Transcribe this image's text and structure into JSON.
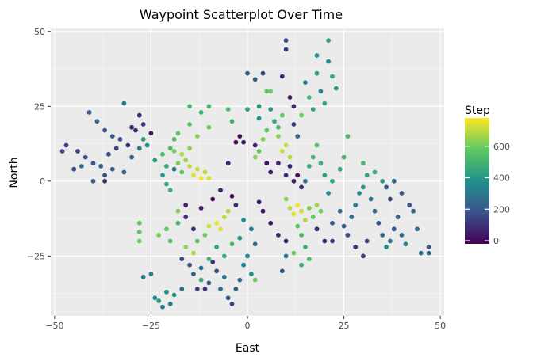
{
  "chart_data": {
    "type": "scatter",
    "title": "Waypoint Scatterplot Over Time",
    "xlabel": "East",
    "ylabel": "North",
    "xlim": [
      -51,
      51
    ],
    "ylim": [
      -45,
      51
    ],
    "x_ticks": [
      -50,
      -25,
      0,
      25,
      50
    ],
    "y_ticks": [
      -25,
      0,
      25,
      50
    ],
    "x_tick_labels": [
      "−50",
      "−25",
      "0",
      "25",
      "50"
    ],
    "y_tick_labels": [
      "−25",
      "0",
      "25",
      "50"
    ],
    "grid": true,
    "colormap": "viridis",
    "colormap_stops": [
      "#440154",
      "#3b528b",
      "#21918c",
      "#5ec962",
      "#fde725"
    ],
    "color_range": [
      -20,
      780
    ],
    "panel_background": "#ebebeb",
    "legend": {
      "title": "Step",
      "placement": "right",
      "ticks": [
        0,
        200,
        400,
        600
      ],
      "tick_labels": [
        "0",
        "200",
        "400",
        "600"
      ]
    },
    "points": [
      {
        "x": -48,
        "y": 10,
        "step": 160
      },
      {
        "x": -47,
        "y": 12,
        "step": 120
      },
      {
        "x": -44,
        "y": 10,
        "step": 140
      },
      {
        "x": -42,
        "y": 8,
        "step": 180
      },
      {
        "x": -40,
        "y": 6,
        "step": 200
      },
      {
        "x": -38,
        "y": 5,
        "step": 220
      },
      {
        "x": -36,
        "y": 9,
        "step": 160
      },
      {
        "x": -34,
        "y": 11,
        "step": 140
      },
      {
        "x": -33,
        "y": 14,
        "step": 180
      },
      {
        "x": -31,
        "y": 12,
        "step": 100
      },
      {
        "x": -30,
        "y": 8,
        "step": 240
      },
      {
        "x": -28,
        "y": 11,
        "step": 320
      },
      {
        "x": -27,
        "y": 14,
        "step": 400
      },
      {
        "x": -26,
        "y": 12,
        "step": 360
      },
      {
        "x": -41,
        "y": 23,
        "step": 200
      },
      {
        "x": -39,
        "y": 20,
        "step": 240
      },
      {
        "x": -37,
        "y": 17,
        "step": 180
      },
      {
        "x": -35,
        "y": 15,
        "step": 220
      },
      {
        "x": -32,
        "y": 26,
        "step": 300
      },
      {
        "x": -30,
        "y": 18,
        "step": 60
      },
      {
        "x": -28,
        "y": 22,
        "step": 80
      },
      {
        "x": -27,
        "y": 19,
        "step": 120
      },
      {
        "x": -25,
        "y": 16,
        "step": 40
      },
      {
        "x": -29,
        "y": 17,
        "step": 90
      },
      {
        "x": -40,
        "y": 0,
        "step": 200
      },
      {
        "x": -37,
        "y": 2,
        "step": 160
      },
      {
        "x": -35,
        "y": 4,
        "step": 240
      },
      {
        "x": -32,
        "y": 3,
        "step": 220
      },
      {
        "x": -45,
        "y": 4,
        "step": 180
      },
      {
        "x": -43,
        "y": 5,
        "step": 260
      },
      {
        "x": -37,
        "y": 0,
        "step": 100
      },
      {
        "x": -24,
        "y": 7,
        "step": 420
      },
      {
        "x": -22,
        "y": 9,
        "step": 520
      },
      {
        "x": -21,
        "y": 5,
        "step": 460
      },
      {
        "x": -20,
        "y": 11,
        "step": 540
      },
      {
        "x": -19,
        "y": 4,
        "step": 300
      },
      {
        "x": -18,
        "y": 6,
        "step": 620
      },
      {
        "x": -17,
        "y": 3,
        "step": 560
      },
      {
        "x": -16,
        "y": 7,
        "step": 660
      },
      {
        "x": -15,
        "y": 5,
        "step": 700
      },
      {
        "x": -14,
        "y": 2,
        "step": 740
      },
      {
        "x": -13,
        "y": 4,
        "step": 720
      },
      {
        "x": -12,
        "y": 1,
        "step": 760
      },
      {
        "x": -11,
        "y": 3,
        "step": 700
      },
      {
        "x": -10,
        "y": 1,
        "step": 740
      },
      {
        "x": -22,
        "y": 2,
        "step": 400
      },
      {
        "x": -21,
        "y": -1,
        "step": 460
      },
      {
        "x": -20,
        "y": -3,
        "step": 500
      },
      {
        "x": -19,
        "y": 10,
        "step": 600
      },
      {
        "x": -17,
        "y": 9,
        "step": 680
      },
      {
        "x": -15,
        "y": 11,
        "step": 640
      },
      {
        "x": -15,
        "y": 19,
        "step": 560
      },
      {
        "x": -15,
        "y": 25,
        "step": 520
      },
      {
        "x": -12,
        "y": 23,
        "step": 480
      },
      {
        "x": -10,
        "y": 25,
        "step": 520
      },
      {
        "x": -10,
        "y": 18,
        "step": 600
      },
      {
        "x": -13,
        "y": 15,
        "step": 640
      },
      {
        "x": -18,
        "y": 16,
        "step": 580
      },
      {
        "x": -19,
        "y": 14,
        "step": 540
      },
      {
        "x": -28,
        "y": -14,
        "step": 580
      },
      {
        "x": -28,
        "y": -17,
        "step": 560
      },
      {
        "x": -28,
        "y": -20,
        "step": 600
      },
      {
        "x": -23,
        "y": -18,
        "step": 620
      },
      {
        "x": -21,
        "y": -16,
        "step": 580
      },
      {
        "x": -20,
        "y": -20,
        "step": 540
      },
      {
        "x": -18,
        "y": -14,
        "step": 500
      },
      {
        "x": -16,
        "y": -22,
        "step": 640
      },
      {
        "x": -14,
        "y": -24,
        "step": 680
      },
      {
        "x": -13,
        "y": -20,
        "step": 560
      },
      {
        "x": -11,
        "y": -18,
        "step": 600
      },
      {
        "x": -10,
        "y": -15,
        "step": 720
      },
      {
        "x": -8,
        "y": -14,
        "step": 760
      },
      {
        "x": -7,
        "y": -16,
        "step": 740
      },
      {
        "x": -6,
        "y": -12,
        "step": 700
      },
      {
        "x": -5,
        "y": -10,
        "step": 680
      },
      {
        "x": -18,
        "y": -10,
        "step": 620
      },
      {
        "x": -16,
        "y": -12,
        "step": 100
      },
      {
        "x": -16,
        "y": -8,
        "step": 60
      },
      {
        "x": -14,
        "y": -16,
        "step": 80
      },
      {
        "x": -12,
        "y": -9,
        "step": 40
      },
      {
        "x": -9,
        "y": -6,
        "step": 20
      },
      {
        "x": -7,
        "y": -3,
        "step": 60
      },
      {
        "x": -4,
        "y": -5,
        "step": 40
      },
      {
        "x": -3,
        "y": -8,
        "step": 80
      },
      {
        "x": -17,
        "y": -26,
        "step": 160
      },
      {
        "x": -15,
        "y": -28,
        "step": 200
      },
      {
        "x": -14,
        "y": -31,
        "step": 240
      },
      {
        "x": -12,
        "y": -29,
        "step": 280
      },
      {
        "x": -10,
        "y": -34,
        "step": 220
      },
      {
        "x": -8,
        "y": -30,
        "step": 180
      },
      {
        "x": -7,
        "y": -36,
        "step": 260
      },
      {
        "x": -6,
        "y": -32,
        "step": 300
      },
      {
        "x": -5,
        "y": -39,
        "step": 200
      },
      {
        "x": -4,
        "y": -41,
        "step": 160
      },
      {
        "x": -3,
        "y": -36,
        "step": 240
      },
      {
        "x": -2,
        "y": -33,
        "step": 280
      },
      {
        "x": -1,
        "y": -28,
        "step": 320
      },
      {
        "x": 0,
        "y": -25,
        "step": 360
      },
      {
        "x": 1,
        "y": -31,
        "step": 400
      },
      {
        "x": 2,
        "y": -33,
        "step": 600
      },
      {
        "x": -27,
        "y": -32,
        "step": 300
      },
      {
        "x": -25,
        "y": -31,
        "step": 340
      },
      {
        "x": -24,
        "y": -39,
        "step": 380
      },
      {
        "x": -23,
        "y": -40,
        "step": 420
      },
      {
        "x": -22,
        "y": -42,
        "step": 300
      },
      {
        "x": -21,
        "y": -37,
        "step": 360
      },
      {
        "x": -20,
        "y": -41,
        "step": 320
      },
      {
        "x": -19,
        "y": -38,
        "step": 400
      },
      {
        "x": -17,
        "y": -36,
        "step": 260
      },
      {
        "x": -13,
        "y": -36,
        "step": 140
      },
      {
        "x": -11,
        "y": -36,
        "step": 100
      },
      {
        "x": -9,
        "y": -27,
        "step": 120
      },
      {
        "x": 0,
        "y": 36,
        "step": 200
      },
      {
        "x": 2,
        "y": 34,
        "step": 240
      },
      {
        "x": 4,
        "y": 36,
        "step": 160
      },
      {
        "x": 5,
        "y": 30,
        "step": 560
      },
      {
        "x": 6,
        "y": 30,
        "step": 600
      },
      {
        "x": 3,
        "y": 25,
        "step": 420
      },
      {
        "x": 6,
        "y": 24,
        "step": 400
      },
      {
        "x": 7,
        "y": 20,
        "step": 460
      },
      {
        "x": 8,
        "y": 18,
        "step": 520
      },
      {
        "x": 9,
        "y": 22,
        "step": 580
      },
      {
        "x": 10,
        "y": 47,
        "step": 160
      },
      {
        "x": 10,
        "y": 44,
        "step": 120
      },
      {
        "x": 9,
        "y": 35,
        "step": 80
      },
      {
        "x": 11,
        "y": 28,
        "step": 40
      },
      {
        "x": 12,
        "y": 25,
        "step": 80
      },
      {
        "x": 12,
        "y": 19,
        "step": 120
      },
      {
        "x": 13,
        "y": 15,
        "step": 240
      },
      {
        "x": 14,
        "y": 22,
        "step": 600
      },
      {
        "x": 15,
        "y": 33,
        "step": 320
      },
      {
        "x": 16,
        "y": 28,
        "step": 500
      },
      {
        "x": 17,
        "y": 24,
        "step": 440
      },
      {
        "x": 18,
        "y": 42,
        "step": 380
      },
      {
        "x": 18,
        "y": 36,
        "step": 420
      },
      {
        "x": 19,
        "y": 30,
        "step": 340
      },
      {
        "x": 20,
        "y": 26,
        "step": 460
      },
      {
        "x": 21,
        "y": 47,
        "step": 420
      },
      {
        "x": 21,
        "y": 40,
        "step": 380
      },
      {
        "x": 22,
        "y": 35,
        "step": 460
      },
      {
        "x": 23,
        "y": 31,
        "step": 400
      },
      {
        "x": 8,
        "y": 15,
        "step": 640
      },
      {
        "x": 10,
        "y": 12,
        "step": 700
      },
      {
        "x": 9,
        "y": 10,
        "step": 720
      },
      {
        "x": 11,
        "y": 8,
        "step": 680
      },
      {
        "x": 5,
        "y": 17,
        "step": 560
      },
      {
        "x": 4,
        "y": 14,
        "step": 620
      },
      {
        "x": 3,
        "y": 10,
        "step": 580
      },
      {
        "x": 2,
        "y": 8,
        "step": 640
      },
      {
        "x": 2,
        "y": 12,
        "step": 60
      },
      {
        "x": 5,
        "y": 6,
        "step": 20
      },
      {
        "x": 6,
        "y": 3,
        "step": 40
      },
      {
        "x": 8,
        "y": 6,
        "step": 80
      },
      {
        "x": 10,
        "y": 2,
        "step": 100
      },
      {
        "x": 11,
        "y": 5,
        "step": 60
      },
      {
        "x": 12,
        "y": 0,
        "step": 40
      },
      {
        "x": 13,
        "y": 2,
        "step": 20
      },
      {
        "x": 14,
        "y": -2,
        "step": 80
      },
      {
        "x": 15,
        "y": 0,
        "step": 300
      },
      {
        "x": 16,
        "y": 5,
        "step": 460
      },
      {
        "x": 17,
        "y": 8,
        "step": 500
      },
      {
        "x": 18,
        "y": 12,
        "step": 540
      },
      {
        "x": 19,
        "y": 6,
        "step": 480
      },
      {
        "x": 20,
        "y": 2,
        "step": 420
      },
      {
        "x": 21,
        "y": -4,
        "step": 380
      },
      {
        "x": 22,
        "y": 0,
        "step": 440
      },
      {
        "x": 10,
        "y": -6,
        "step": 640
      },
      {
        "x": 11,
        "y": -9,
        "step": 700
      },
      {
        "x": 12,
        "y": -11,
        "step": 740
      },
      {
        "x": 13,
        "y": -8,
        "step": 760
      },
      {
        "x": 14,
        "y": -10,
        "step": 720
      },
      {
        "x": 15,
        "y": -13,
        "step": 680
      },
      {
        "x": 16,
        "y": -9,
        "step": 620
      },
      {
        "x": 17,
        "y": -12,
        "step": 580
      },
      {
        "x": 18,
        "y": -8,
        "step": 660
      },
      {
        "x": 19,
        "y": -10,
        "step": 600
      },
      {
        "x": 13,
        "y": -15,
        "step": 560
      },
      {
        "x": 14,
        "y": -18,
        "step": 520
      },
      {
        "x": 15,
        "y": -22,
        "step": 500
      },
      {
        "x": 16,
        "y": -26,
        "step": 540
      },
      {
        "x": 14,
        "y": -28,
        "step": 480
      },
      {
        "x": 12,
        "y": -24,
        "step": 600
      },
      {
        "x": 10,
        "y": -20,
        "step": 60
      },
      {
        "x": 8,
        "y": -18,
        "step": 80
      },
      {
        "x": 6,
        "y": -14,
        "step": 40
      },
      {
        "x": 4,
        "y": -10,
        "step": 20
      },
      {
        "x": 3,
        "y": -7,
        "step": 60
      },
      {
        "x": 9,
        "y": -30,
        "step": 200
      },
      {
        "x": 10,
        "y": -25,
        "step": 300
      },
      {
        "x": 18,
        "y": -16,
        "step": 60
      },
      {
        "x": 20,
        "y": -20,
        "step": 80
      },
      {
        "x": 22,
        "y": -14,
        "step": 200
      },
      {
        "x": 24,
        "y": -10,
        "step": 240
      },
      {
        "x": 25,
        "y": -15,
        "step": 220
      },
      {
        "x": 26,
        "y": -18,
        "step": 160
      },
      {
        "x": 27,
        "y": -12,
        "step": 280
      },
      {
        "x": 28,
        "y": -8,
        "step": 320
      },
      {
        "x": 29,
        "y": -4,
        "step": 360
      },
      {
        "x": 30,
        "y": -2,
        "step": 400
      },
      {
        "x": 31,
        "y": 2,
        "step": 440
      },
      {
        "x": 32,
        "y": -6,
        "step": 300
      },
      {
        "x": 33,
        "y": -10,
        "step": 260
      },
      {
        "x": 34,
        "y": -14,
        "step": 200
      },
      {
        "x": 35,
        "y": -18,
        "step": 240
      },
      {
        "x": 36,
        "y": -22,
        "step": 380
      },
      {
        "x": 37,
        "y": -20,
        "step": 300
      },
      {
        "x": 38,
        "y": -16,
        "step": 180
      },
      {
        "x": 39,
        "y": -12,
        "step": 220
      },
      {
        "x": 40,
        "y": -18,
        "step": 260
      },
      {
        "x": 41,
        "y": -21,
        "step": 320
      },
      {
        "x": 42,
        "y": -8,
        "step": 200
      },
      {
        "x": 43,
        "y": -10,
        "step": 240
      },
      {
        "x": 44,
        "y": -16,
        "step": 260
      },
      {
        "x": 45,
        "y": -24,
        "step": 300
      },
      {
        "x": 47,
        "y": -22,
        "step": 200
      },
      {
        "x": 47,
        "y": -24,
        "step": 240
      },
      {
        "x": 36,
        "y": -2,
        "step": 200
      },
      {
        "x": 38,
        "y": 0,
        "step": 240
      },
      {
        "x": 40,
        "y": -4,
        "step": 180
      },
      {
        "x": 33,
        "y": 3,
        "step": 460
      },
      {
        "x": 35,
        "y": 0,
        "step": 420
      },
      {
        "x": 37,
        "y": -6,
        "step": 160
      },
      {
        "x": 25,
        "y": 8,
        "step": 500
      },
      {
        "x": 26,
        "y": 15,
        "step": 520
      },
      {
        "x": 24,
        "y": 4,
        "step": 460
      },
      {
        "x": 30,
        "y": 6,
        "step": 520
      },
      {
        "x": 31,
        "y": -20,
        "step": 140
      },
      {
        "x": 30,
        "y": -25,
        "step": 120
      },
      {
        "x": 28,
        "y": -22,
        "step": 100
      },
      {
        "x": 22,
        "y": -20,
        "step": 120
      },
      {
        "x": -8,
        "y": -22,
        "step": 440
      },
      {
        "x": -6,
        "y": -25,
        "step": 480
      },
      {
        "x": -4,
        "y": -21,
        "step": 520
      },
      {
        "x": -2,
        "y": -19,
        "step": 400
      },
      {
        "x": -1,
        "y": -13,
        "step": 360
      },
      {
        "x": 1,
        "y": -16,
        "step": 320
      },
      {
        "x": 2,
        "y": -21,
        "step": 280
      },
      {
        "x": -10,
        "y": -26,
        "step": 500
      },
      {
        "x": -12,
        "y": -33,
        "step": 460
      },
      {
        "x": -5,
        "y": 24,
        "step": 540
      },
      {
        "x": -4,
        "y": 20,
        "step": 500
      },
      {
        "x": -2,
        "y": 15,
        "step": 40
      },
      {
        "x": -1,
        "y": 13,
        "step": 60
      },
      {
        "x": -3,
        "y": 13,
        "step": 20
      },
      {
        "x": -5,
        "y": 6,
        "step": 80
      },
      {
        "x": 0,
        "y": 24,
        "step": 420
      },
      {
        "x": 3,
        "y": 21,
        "step": 380
      }
    ]
  }
}
